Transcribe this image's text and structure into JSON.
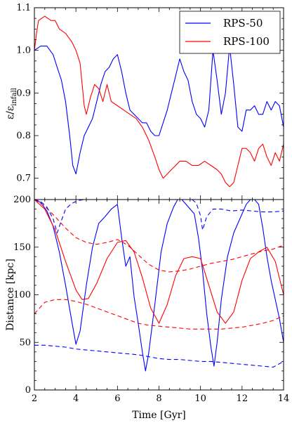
{
  "chart_data": [
    {
      "type": "line",
      "panel": "top",
      "ylabel": "ε/ε_infall",
      "ylabel_main": "ε/ε",
      "ylabel_sub": "infall",
      "xlim": [
        2,
        14
      ],
      "ylim": [
        0.65,
        1.1
      ],
      "yticks": [
        0.7,
        0.8,
        0.9,
        1.0,
        1.1
      ],
      "ytick_labels": [
        "0.7",
        "0.8",
        "0.9",
        "1.0",
        "1.1"
      ],
      "grid": false,
      "legend": "top-right",
      "series": [
        {
          "name": "RPS-50",
          "color": "#0000ff",
          "style": "solid",
          "x": [
            2.0,
            2.3,
            2.6,
            2.9,
            3.1,
            3.3,
            3.5,
            3.7,
            3.85,
            4.0,
            4.2,
            4.4,
            4.6,
            4.8,
            5.0,
            5.2,
            5.4,
            5.6,
            5.8,
            6.0,
            6.2,
            6.4,
            6.6,
            6.8,
            7.0,
            7.2,
            7.4,
            7.6,
            7.8,
            8.0,
            8.2,
            8.4,
            8.6,
            8.8,
            9.0,
            9.2,
            9.4,
            9.6,
            9.8,
            10.0,
            10.2,
            10.4,
            10.6,
            10.8,
            11.0,
            11.2,
            11.4,
            11.6,
            11.8,
            12.0,
            12.2,
            12.4,
            12.6,
            12.8,
            13.0,
            13.2,
            13.4,
            13.6,
            13.8,
            14.0
          ],
          "y": [
            1.0,
            1.01,
            1.01,
            0.99,
            0.96,
            0.93,
            0.88,
            0.8,
            0.73,
            0.71,
            0.76,
            0.8,
            0.82,
            0.84,
            0.88,
            0.92,
            0.95,
            0.96,
            0.98,
            0.99,
            0.95,
            0.9,
            0.86,
            0.85,
            0.84,
            0.83,
            0.83,
            0.81,
            0.8,
            0.8,
            0.83,
            0.86,
            0.9,
            0.94,
            0.98,
            0.95,
            0.93,
            0.88,
            0.85,
            0.84,
            0.82,
            0.86,
            1.0,
            0.93,
            0.85,
            0.9,
            1.01,
            0.92,
            0.82,
            0.81,
            0.86,
            0.86,
            0.87,
            0.85,
            0.85,
            0.88,
            0.86,
            0.88,
            0.87,
            0.82
          ]
        },
        {
          "name": "RPS-100",
          "color": "#ff0000",
          "style": "solid",
          "x": [
            2.0,
            2.1,
            2.2,
            2.5,
            2.8,
            3.0,
            3.2,
            3.5,
            3.8,
            4.0,
            4.2,
            4.4,
            4.5,
            4.7,
            4.9,
            5.1,
            5.3,
            5.5,
            5.7,
            6.0,
            6.3,
            6.6,
            6.9,
            7.2,
            7.5,
            7.8,
            8.0,
            8.2,
            8.4,
            8.6,
            8.8,
            9.0,
            9.3,
            9.6,
            9.9,
            10.2,
            10.5,
            10.8,
            11.0,
            11.2,
            11.4,
            11.6,
            11.8,
            12.0,
            12.2,
            12.4,
            12.6,
            12.8,
            13.0,
            13.2,
            13.4,
            13.6,
            13.8,
            14.0
          ],
          "y": [
            1.0,
            1.04,
            1.07,
            1.08,
            1.07,
            1.07,
            1.05,
            1.04,
            1.02,
            1.0,
            0.97,
            0.87,
            0.85,
            0.89,
            0.92,
            0.91,
            0.88,
            0.92,
            0.88,
            0.87,
            0.86,
            0.85,
            0.84,
            0.82,
            0.79,
            0.75,
            0.72,
            0.7,
            0.71,
            0.72,
            0.73,
            0.74,
            0.74,
            0.73,
            0.73,
            0.74,
            0.73,
            0.72,
            0.71,
            0.69,
            0.68,
            0.69,
            0.73,
            0.77,
            0.77,
            0.76,
            0.74,
            0.77,
            0.78,
            0.75,
            0.73,
            0.76,
            0.74,
            0.78
          ]
        }
      ]
    },
    {
      "type": "line",
      "panel": "bottom",
      "xlabel": "Time [Gyr]",
      "ylabel": "Distance [kpc]",
      "xlim": [
        2,
        14
      ],
      "ylim": [
        0,
        200
      ],
      "xticks": [
        2,
        4,
        6,
        8,
        10,
        12,
        14
      ],
      "xtick_labels": [
        "2",
        "4",
        "6",
        "8",
        "10",
        "12",
        "14"
      ],
      "yticks": [
        0,
        50,
        100,
        150,
        200
      ],
      "ytick_labels": [
        "0",
        "50",
        "100",
        "150",
        "200"
      ],
      "grid": false,
      "series": [
        {
          "color": "#0000ff",
          "style": "solid",
          "x": [
            2.0,
            2.3,
            2.6,
            2.9,
            3.2,
            3.5,
            3.8,
            4.0,
            4.2,
            4.5,
            4.8,
            5.1,
            5.4,
            5.7,
            6.0,
            6.2,
            6.4,
            6.6,
            6.8,
            7.0,
            7.2,
            7.35,
            7.5,
            7.8,
            8.1,
            8.4,
            8.7,
            8.9,
            9.1,
            9.3,
            9.5,
            9.7,
            9.9,
            10.1,
            10.3,
            10.5,
            10.65,
            10.8,
            11.0,
            11.3,
            11.6,
            11.9,
            12.2,
            12.4,
            12.6,
            12.8,
            13.0,
            13.2,
            13.4,
            13.6,
            13.8,
            14.0
          ],
          "y": [
            200,
            197,
            188,
            172,
            145,
            110,
            72,
            48,
            62,
            110,
            150,
            175,
            182,
            190,
            195,
            160,
            130,
            140,
            98,
            70,
            40,
            20,
            38,
            90,
            145,
            175,
            192,
            200,
            200,
            195,
            190,
            185,
            160,
            125,
            80,
            45,
            25,
            50,
            95,
            140,
            165,
            180,
            195,
            200,
            200,
            195,
            170,
            140,
            115,
            95,
            75,
            50
          ]
        },
        {
          "color": "#0000ff",
          "style": "dashed",
          "x": [
            2.0,
            2.5,
            3.0,
            3.5,
            4.0,
            4.5,
            5.0,
            5.5,
            6.0,
            6.5,
            7.0,
            7.5,
            8.0,
            8.5,
            9.0,
            9.5,
            10.0,
            10.5,
            11.0,
            11.5,
            12.0,
            12.5,
            13.0,
            13.5,
            14.0
          ],
          "y": [
            47,
            47,
            46,
            45,
            43,
            42,
            41,
            40,
            39,
            38,
            37,
            35,
            33,
            32,
            32,
            31,
            30,
            30,
            29,
            28,
            27,
            26,
            25,
            24,
            30
          ]
        },
        {
          "color": "#ff0000",
          "style": "solid",
          "x": [
            2.0,
            2.5,
            3.0,
            3.5,
            4.0,
            4.3,
            4.6,
            5.0,
            5.5,
            6.0,
            6.4,
            6.8,
            7.2,
            7.6,
            8.0,
            8.4,
            8.8,
            9.2,
            9.6,
            10.0,
            10.4,
            10.8,
            11.2,
            11.6,
            12.0,
            12.4,
            12.8,
            13.2,
            13.6,
            14.0
          ],
          "y": [
            200,
            190,
            168,
            135,
            105,
            95,
            96,
            112,
            138,
            155,
            157,
            145,
            118,
            86,
            70,
            90,
            120,
            138,
            140,
            138,
            110,
            82,
            70,
            82,
            115,
            138,
            145,
            150,
            135,
            100
          ]
        },
        {
          "color": "#ff0000",
          "style": "dashed",
          "x": [
            2.0,
            2.5,
            3.0,
            3.5,
            4.0,
            4.5,
            5.0,
            5.5,
            6.0,
            6.5,
            7.0,
            7.5,
            8.0,
            8.5,
            9.0,
            9.5,
            10.0,
            10.5,
            11.0,
            11.5,
            12.0,
            12.5,
            13.0,
            13.5,
            14.0
          ],
          "y": [
            80,
            92,
            95,
            95,
            93,
            90,
            86,
            82,
            78,
            74,
            70,
            68,
            67,
            66,
            65,
            64,
            64,
            64,
            64,
            65,
            66,
            68,
            70,
            73,
            78
          ]
        },
        {
          "color": "#ff0000",
          "style": "dashed",
          "x": [
            2.0,
            2.5,
            3.0,
            3.5,
            4.0,
            4.5,
            5.0,
            5.5,
            6.0,
            6.5,
            7.0,
            7.5,
            8.0,
            8.5,
            9.0,
            9.5,
            10.0,
            10.5,
            11.0,
            11.5,
            12.0,
            12.5,
            13.0,
            13.5,
            14.0
          ],
          "y": [
            200,
            193,
            182,
            170,
            160,
            155,
            153,
            155,
            158,
            152,
            142,
            132,
            126,
            124,
            125,
            127,
            130,
            133,
            135,
            137,
            140,
            143,
            146,
            148,
            152
          ]
        },
        {
          "color": "#0000ff",
          "style": "dashed",
          "x": [
            2.0,
            2.3,
            2.6,
            2.9,
            3.1,
            3.3,
            3.5,
            3.8,
            4.1,
            4.4
          ],
          "y": [
            200,
            198,
            192,
            180,
            165,
            178,
            190,
            196,
            199,
            200
          ]
        },
        {
          "color": "#0000ff",
          "style": "dashed",
          "x": [
            9.6,
            9.8,
            10.0,
            10.1,
            10.3,
            10.6,
            11.0,
            11.5,
            12.0,
            12.5,
            13.0,
            13.5,
            14.0
          ],
          "y": [
            200,
            196,
            183,
            168,
            182,
            190,
            190,
            188,
            189,
            188,
            187,
            187,
            188
          ]
        }
      ]
    }
  ]
}
